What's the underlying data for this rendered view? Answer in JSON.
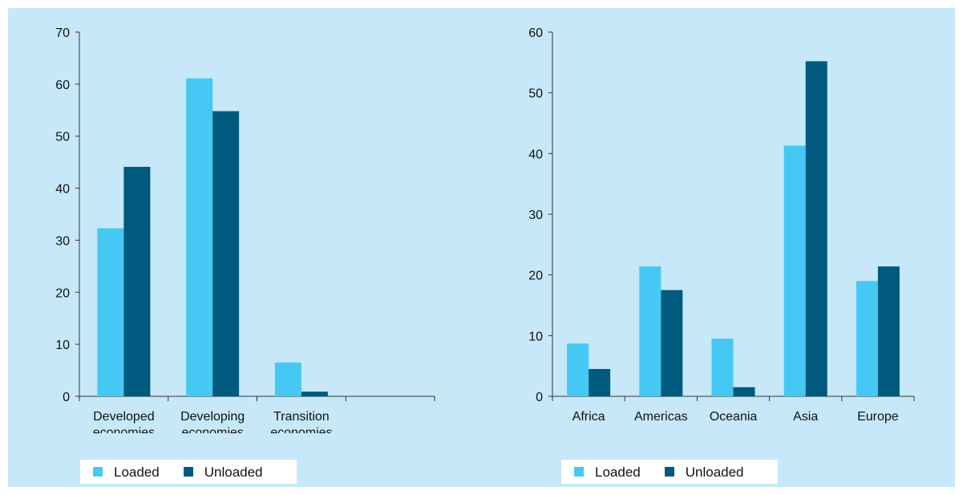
{
  "colors": {
    "panel_background": "#c6e8f8",
    "loaded": "#45c9f4",
    "unloaded": "#005a7d",
    "axis": "#333333"
  },
  "chart_data": [
    {
      "type": "bar",
      "categories": [
        "Developed\neconomies",
        "Developing\neconomies",
        "Transition\neconomies",
        ""
      ],
      "series": [
        {
          "name": "Loaded",
          "values": [
            32.3,
            61.1,
            6.5,
            0
          ]
        },
        {
          "name": "Unloaded",
          "values": [
            44.1,
            54.8,
            0.9,
            0
          ]
        }
      ],
      "ylim": [
        0,
        70
      ],
      "yticks": [
        0,
        10,
        20,
        30,
        40,
        50,
        60,
        70
      ],
      "title": "",
      "xlabel": "",
      "ylabel": "",
      "grid": false,
      "legend": "bottom-left"
    },
    {
      "type": "bar",
      "categories": [
        "Africa",
        "Americas",
        "Oceania",
        "Asia",
        "Europe"
      ],
      "series": [
        {
          "name": "Loaded",
          "values": [
            8.7,
            21.4,
            9.5,
            41.3,
            19.0
          ]
        },
        {
          "name": "Unloaded",
          "values": [
            4.5,
            17.5,
            1.5,
            55.2,
            21.4
          ]
        }
      ],
      "ylim": [
        0,
        60
      ],
      "yticks": [
        0,
        10,
        20,
        30,
        40,
        50,
        60
      ],
      "title": "",
      "xlabel": "",
      "ylabel": "",
      "grid": false,
      "legend": "bottom-left"
    }
  ],
  "legends": [
    {
      "loaded_label": "Loaded",
      "unloaded_label": "Unloaded"
    },
    {
      "loaded_label": "Loaded",
      "unloaded_label": "Unloaded"
    }
  ]
}
